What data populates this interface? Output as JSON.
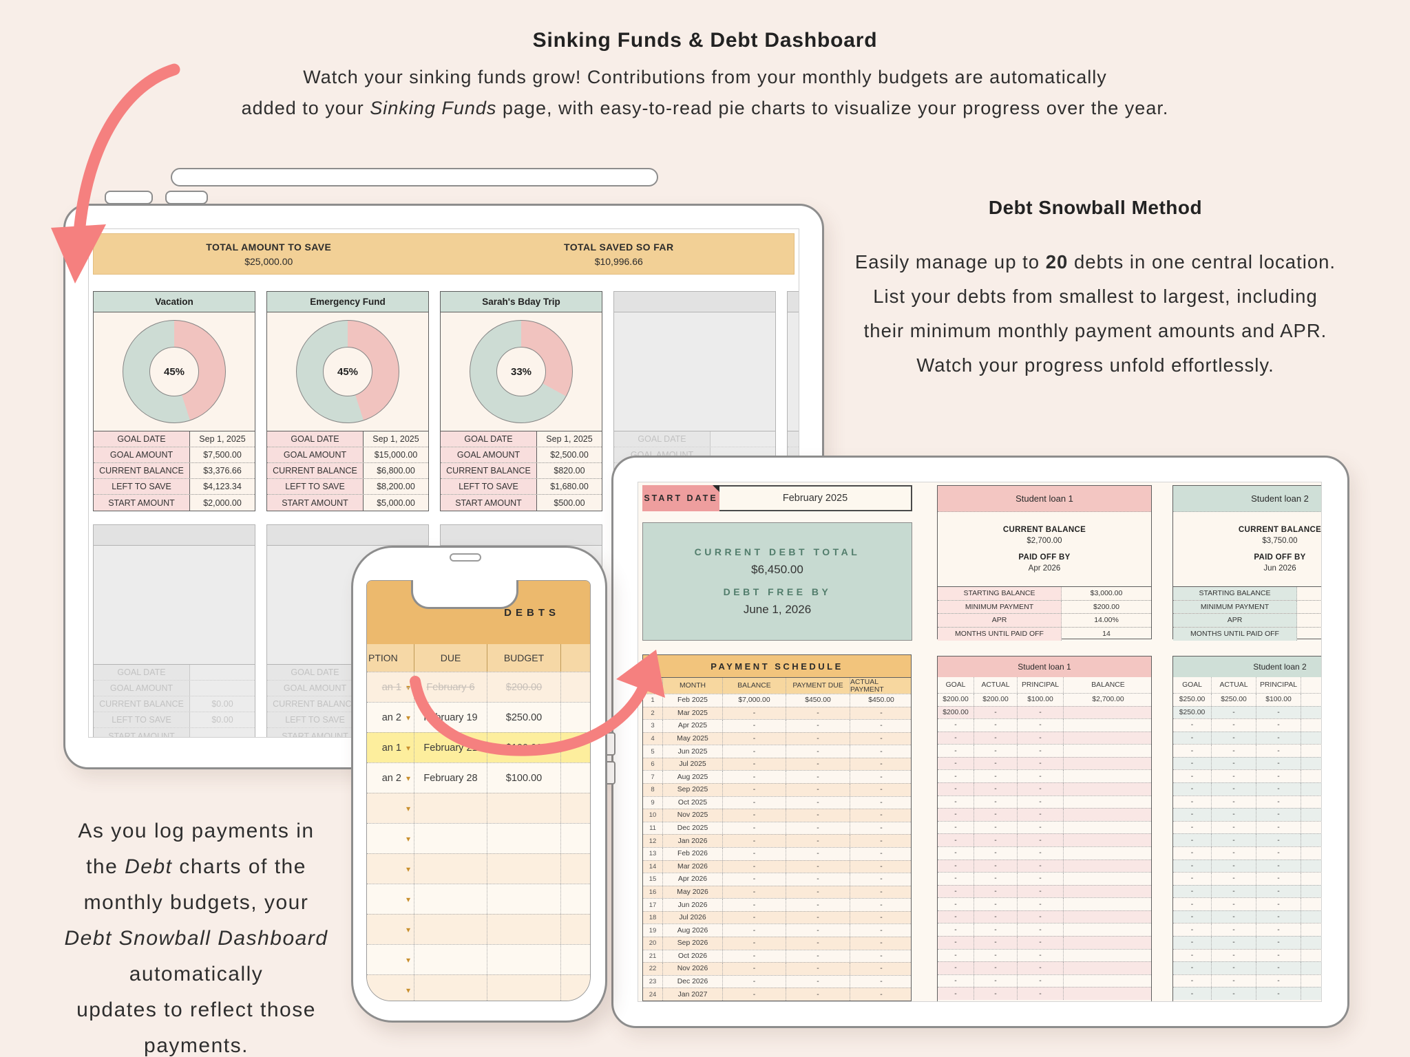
{
  "page": {
    "title": "Sinking Funds & Debt Dashboard",
    "subtitle_line1": "Watch your sinking funds grow! Contributions from your monthly budgets are automatically",
    "subtitle_line2_pre": "added to your ",
    "subtitle_line2_italic": "Sinking Funds",
    "subtitle_line2_post": " page, with easy-to-read pie charts to visualize your progress over the year."
  },
  "debt_method": {
    "heading": "Debt Snowball Method",
    "body_pre": "Easily manage up to ",
    "body_bold": "20",
    "body_post": " debts in one central location. List your debts from smallest to largest, including their minimum monthly payment amounts and APR. Watch your progress unfold effortlessly."
  },
  "bottom_note": {
    "lines": [
      [
        {
          "t": "As you log payments in"
        }
      ],
      [
        {
          "t": "the "
        },
        {
          "t": "Debt",
          "i": true
        },
        {
          "t": " charts of the"
        }
      ],
      [
        {
          "t": "monthly budgets, your"
        }
      ],
      [
        {
          "t": "Debt Snowball Dashboard",
          "i": true
        }
      ],
      [
        {
          "t": "automatically"
        }
      ],
      [
        {
          "t": "updates to reflect those"
        }
      ],
      [
        {
          "t": "payments."
        }
      ]
    ]
  },
  "sinking": {
    "total_to_save_label": "TOTAL AMOUNT TO SAVE",
    "total_to_save_value": "$25,000.00",
    "total_saved_label": "TOTAL SAVED SO FAR",
    "total_saved_value": "$10,996.66",
    "row_labels": [
      "GOAL DATE",
      "GOAL AMOUNT",
      "CURRENT BALANCE",
      "LEFT TO SAVE",
      "START AMOUNT"
    ],
    "funds": [
      {
        "name": "Vacation",
        "percent": "45%",
        "pct": 45,
        "goal_date": "Sep 1, 2025",
        "goal_amount": "$7,500.00",
        "current_balance": "$3,376.66",
        "left_to_save": "$4,123.34",
        "start_amount": "$2,000.00"
      },
      {
        "name": "Emergency Fund",
        "percent": "45%",
        "pct": 45,
        "goal_date": "Sep 1, 2025",
        "goal_amount": "$15,000.00",
        "current_balance": "$6,800.00",
        "left_to_save": "$8,200.00",
        "start_amount": "$5,000.00"
      },
      {
        "name": "Sarah's Bday Trip",
        "percent": "33%",
        "pct": 33,
        "goal_date": "Sep 1, 2025",
        "goal_amount": "$2,500.00",
        "current_balance": "$820.00",
        "left_to_save": "$1,680.00",
        "start_amount": "$500.00"
      }
    ],
    "empty_values": [
      "",
      "",
      "$0.00",
      "$0.00",
      ""
    ]
  },
  "debt_dashboard": {
    "start_date_label": "START DATE",
    "start_date_value": "February 2025",
    "current_debt_label": "CURRENT DEBT TOTAL",
    "current_debt_value": "$6,450.00",
    "debt_free_label": "DEBT FREE BY",
    "debt_free_value": "June 1, 2026",
    "schedule": {
      "title": "PAYMENT SCHEDULE",
      "columns": [
        "",
        "MONTH",
        "BALANCE",
        "PAYMENT DUE",
        "ACTUAL PAYMENT"
      ],
      "rows": [
        [
          "1",
          "Feb 2025",
          "$7,000.00",
          "$450.00",
          "$450.00"
        ],
        [
          "2",
          "Mar 2025",
          "-",
          "-",
          "-"
        ],
        [
          "3",
          "Apr 2025",
          "-",
          "-",
          "-"
        ],
        [
          "4",
          "May 2025",
          "-",
          "-",
          "-"
        ],
        [
          "5",
          "Jun 2025",
          "-",
          "-",
          "-"
        ],
        [
          "6",
          "Jul 2025",
          "-",
          "-",
          "-"
        ],
        [
          "7",
          "Aug 2025",
          "-",
          "-",
          "-"
        ],
        [
          "8",
          "Sep 2025",
          "-",
          "-",
          "-"
        ],
        [
          "9",
          "Oct 2025",
          "-",
          "-",
          "-"
        ],
        [
          "10",
          "Nov 2025",
          "-",
          "-",
          "-"
        ],
        [
          "11",
          "Dec 2025",
          "-",
          "-",
          "-"
        ],
        [
          "12",
          "Jan 2026",
          "-",
          "-",
          "-"
        ],
        [
          "13",
          "Feb 2026",
          "-",
          "-",
          "-"
        ],
        [
          "14",
          "Mar 2026",
          "-",
          "-",
          "-"
        ],
        [
          "15",
          "Apr 2026",
          "-",
          "-",
          "-"
        ],
        [
          "16",
          "May 2026",
          "-",
          "-",
          "-"
        ],
        [
          "17",
          "Jun 2026",
          "-",
          "-",
          "-"
        ],
        [
          "18",
          "Jul 2026",
          "-",
          "-",
          "-"
        ],
        [
          "19",
          "Aug 2026",
          "-",
          "-",
          "-"
        ],
        [
          "20",
          "Sep 2026",
          "-",
          "-",
          "-"
        ],
        [
          "21",
          "Oct 2026",
          "-",
          "-",
          "-"
        ],
        [
          "22",
          "Nov 2026",
          "-",
          "-",
          "-"
        ],
        [
          "23",
          "Dec 2026",
          "-",
          "-",
          "-"
        ],
        [
          "24",
          "Jan 2027",
          "-",
          "-",
          "-"
        ]
      ]
    },
    "loan1": {
      "name": "Student loan 1",
      "current_balance_label": "CURRENT BALANCE",
      "current_balance": "$2,700.00",
      "paid_off_label": "PAID OFF BY",
      "paid_off": "Apr 2026",
      "stats": [
        [
          "STARTING BALANCE",
          "$3,000.00"
        ],
        [
          "MINIMUM PAYMENT",
          "$200.00"
        ],
        [
          "APR",
          "14.00%"
        ],
        [
          "MONTHS UNTIL PAID OFF",
          "14"
        ]
      ],
      "pay_columns": [
        "GOAL",
        "ACTUAL",
        "PRINCIPAL",
        "BALANCE"
      ],
      "pay_rows": [
        [
          "$200.00",
          "$200.00",
          "$100.00",
          "$2,700.00"
        ],
        [
          "$200.00",
          "-",
          "-",
          ""
        ]
      ],
      "pay_fill_row": [
        "-",
        "-",
        "-",
        ""
      ],
      "pay_row_count": 24
    },
    "loan2": {
      "name": "Student loan 2",
      "current_balance_label": "CURRENT BALANCE",
      "current_balance": "$3,750.00",
      "paid_off_label": "PAID OFF BY",
      "paid_off": "Jun 2026",
      "stats": [
        [
          "STARTING BALANCE",
          ""
        ],
        [
          "MINIMUM PAYMENT",
          ""
        ],
        [
          "APR",
          ""
        ],
        [
          "MONTHS UNTIL PAID OFF",
          ""
        ]
      ],
      "pay_columns": [
        "GOAL",
        "ACTUAL",
        "PRINCIPAL",
        ""
      ],
      "pay_rows": [
        [
          "$250.00",
          "$250.00",
          "$100.00",
          ""
        ],
        [
          "$250.00",
          "-",
          "-",
          ""
        ]
      ],
      "pay_fill_row": [
        "-",
        "-",
        "-",
        ""
      ],
      "pay_row_count": 24
    }
  },
  "phone": {
    "header": "DEBTS",
    "columns": [
      "PTION",
      "DUE",
      "BUDGET",
      ""
    ],
    "rows": [
      {
        "desc": "an 1",
        "due": "February 6",
        "budget": "$200.00",
        "state": "struck"
      },
      {
        "desc": "an 2",
        "due": "February 19",
        "budget": "$250.00",
        "state": "normal"
      },
      {
        "desc": "an 1",
        "due": "February 21",
        "budget": "$100.00",
        "state": "highlight"
      },
      {
        "desc": "an 2",
        "due": "February 28",
        "budget": "$100.00",
        "state": "normal"
      }
    ],
    "empty_row_count": 7
  },
  "colors": {
    "accent_arrow": "#f5807f",
    "banner_orange": "#f2d096",
    "schedule_orange": "#f2c47c",
    "pie_pink": "#f1c3bf",
    "pie_green": "#cddcd4",
    "pink_header": "#f3c6c2",
    "green_header": "#cfdfd7",
    "start_date_pink": "#ee9e9e",
    "debt_total_green": "#c7dad1",
    "highlight_yellow": "#fdee9d",
    "phone_orange": "#ecb96d"
  }
}
